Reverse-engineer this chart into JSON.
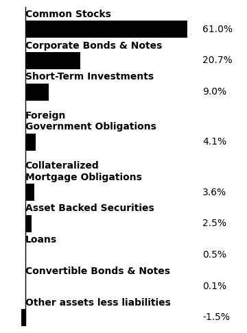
{
  "categories": [
    "Common Stocks",
    "Corporate Bonds & Notes",
    "Short-Term Investments",
    "Foreign\nGovernment Obligations",
    "Collateralized\nMortgage Obligations",
    "Asset Backed Securities",
    "Loans",
    "Convertible Bonds & Notes",
    "Other assets less liabilities"
  ],
  "values": [
    61.0,
    20.7,
    9.0,
    4.1,
    3.6,
    2.5,
    0.5,
    0.1,
    -1.5
  ],
  "labels": [
    "61.0%",
    "20.7%",
    "9.0%",
    "4.1%",
    "3.6%",
    "2.5%",
    "0.5%",
    "0.1%",
    "-1.5%"
  ],
  "bar_color": "#000000",
  "background_color": "#ffffff",
  "label_fontsize": 10,
  "value_fontsize": 10,
  "bar_height": 0.55,
  "figsize": [
    3.6,
    4.86
  ],
  "dpi": 100
}
